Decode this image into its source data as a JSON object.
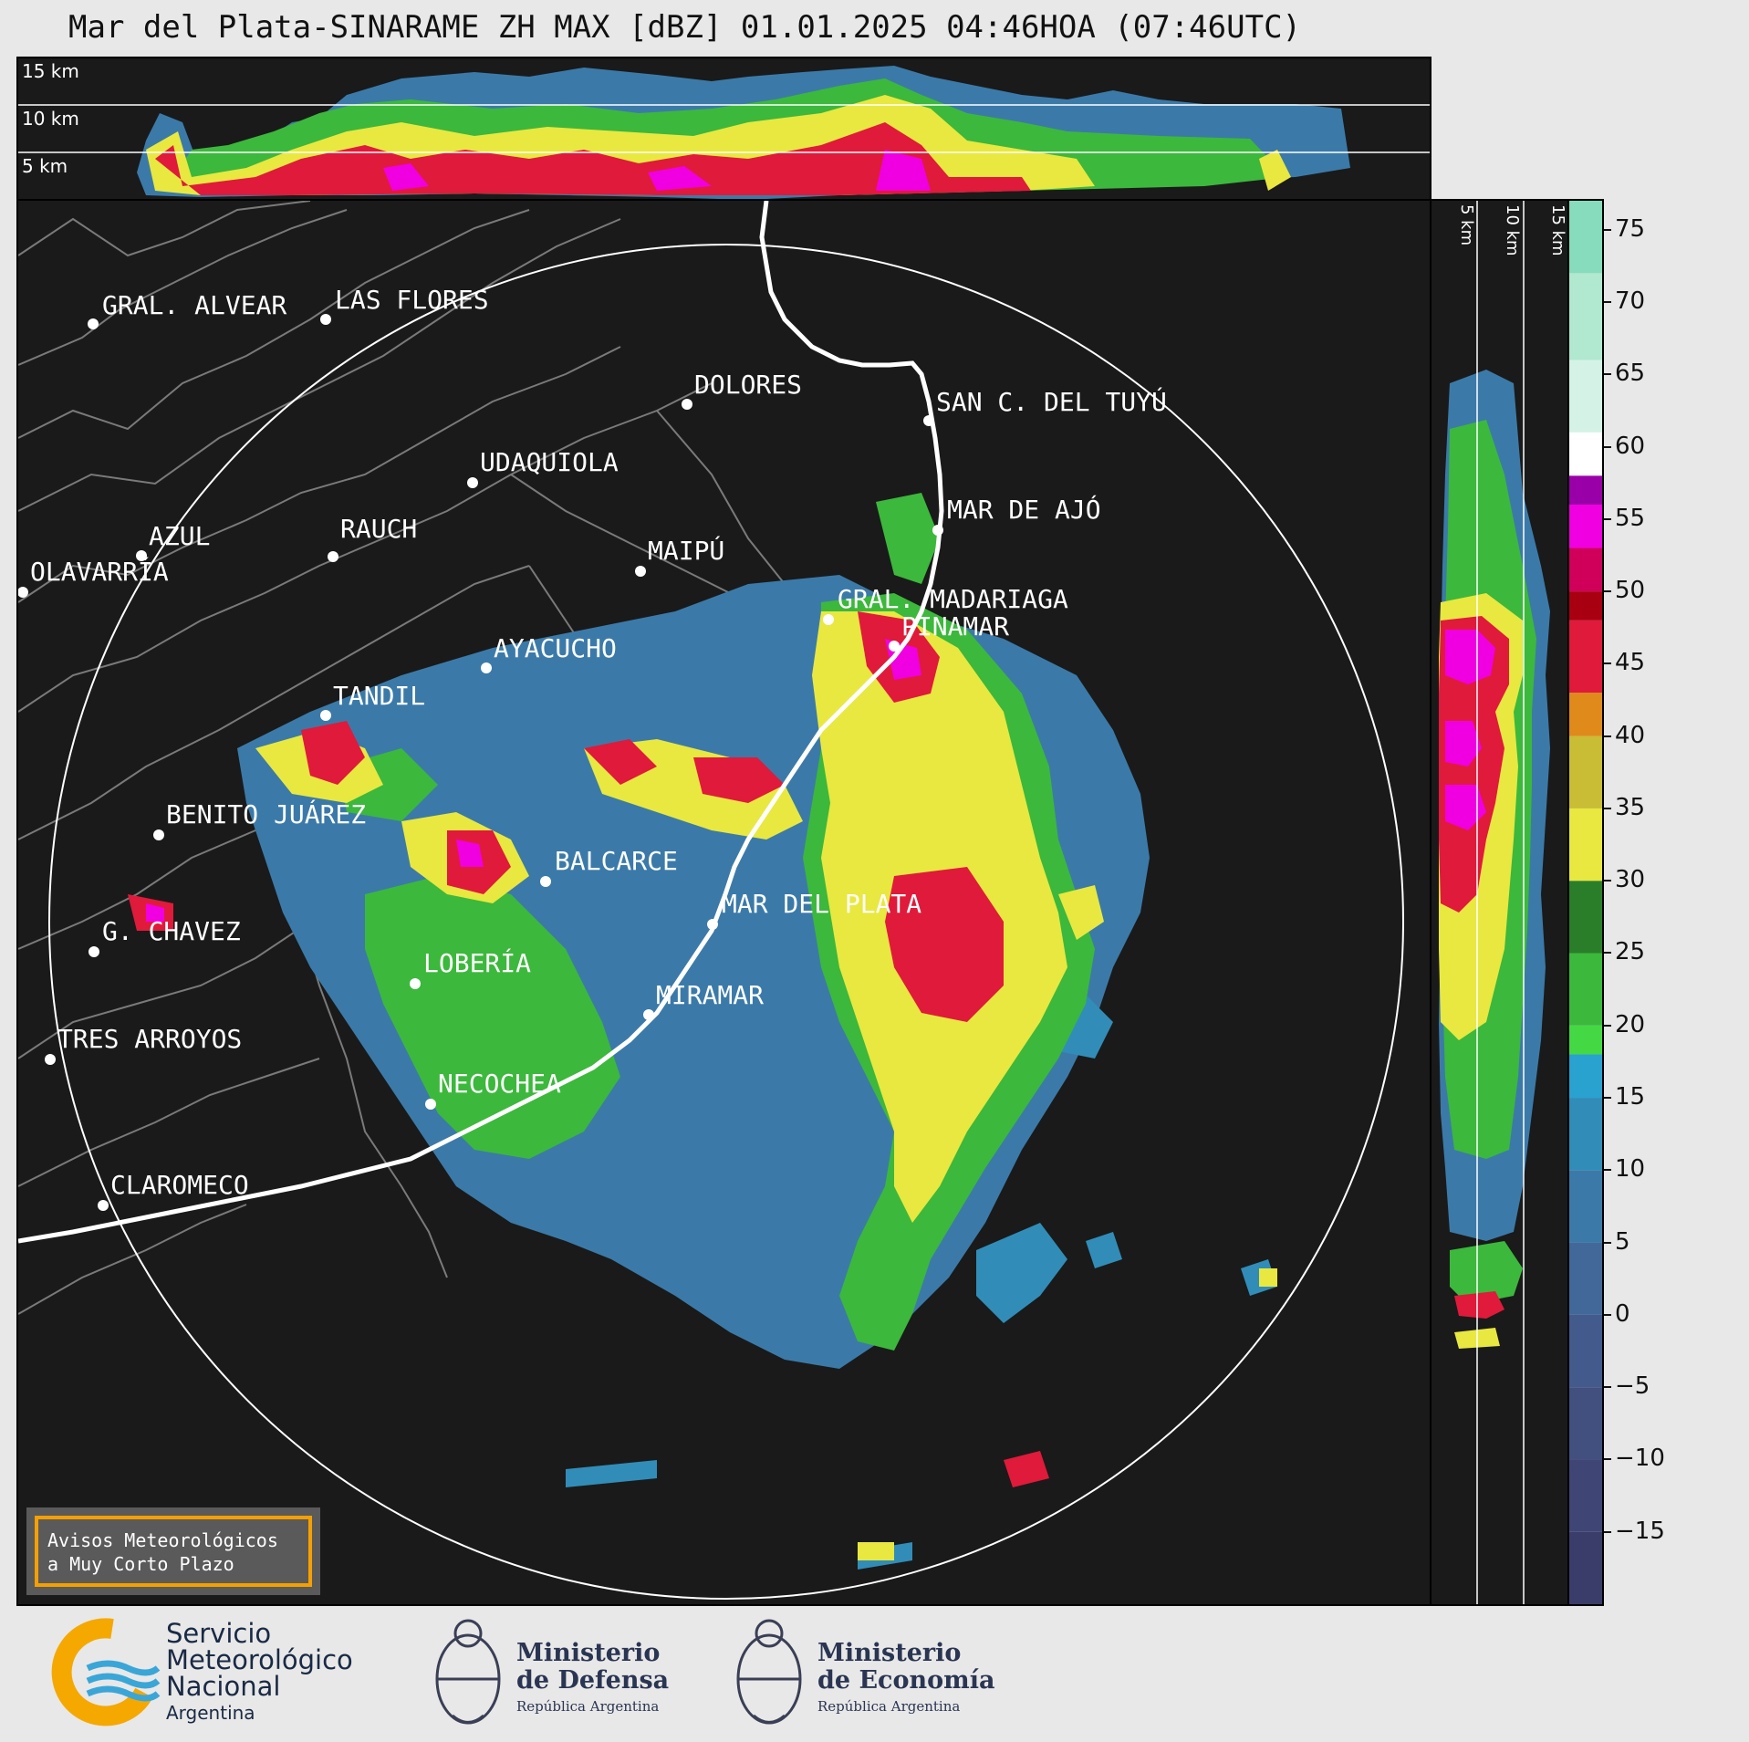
{
  "header": {
    "title": "Mar del Plata-SINARAME ZH MAX [dBZ] 01.01.2025 04:46HOA (07:46UTC)"
  },
  "top_panel": {
    "height_labels": [
      "15 km",
      "10 km",
      "5 km"
    ]
  },
  "side_panel": {
    "height_labels": [
      "5 km",
      "10 km",
      "15 km"
    ]
  },
  "map": {
    "cities": [
      {
        "name": "GRAL. ALVEAR"
      },
      {
        "name": "LAS FLORES"
      },
      {
        "name": "DOLORES"
      },
      {
        "name": "SAN C. DEL TUYÚ"
      },
      {
        "name": "UDAQUIOLA"
      },
      {
        "name": "MAR DE AJÓ"
      },
      {
        "name": "AZUL"
      },
      {
        "name": "RAUCH"
      },
      {
        "name": "MAIPÚ"
      },
      {
        "name": "OLAVARRÍA"
      },
      {
        "name": "GRAL. MADARIAGA"
      },
      {
        "name": "PINAMAR"
      },
      {
        "name": "AYACUCHO"
      },
      {
        "name": "TANDIL"
      },
      {
        "name": "BENITO JUÁREZ"
      },
      {
        "name": "BALCARCE"
      },
      {
        "name": "MAR DEL PLATA"
      },
      {
        "name": "G. CHAVEZ"
      },
      {
        "name": "LOBERÍA"
      },
      {
        "name": "MIRAMAR"
      },
      {
        "name": "TRES ARROYOS"
      },
      {
        "name": "NECOCHEA"
      },
      {
        "name": "CLAROMECO"
      }
    ]
  },
  "colorbar": {
    "unit": "dBZ",
    "ticks": [
      "75",
      "70",
      "65",
      "60",
      "55",
      "50",
      "45",
      "40",
      "35",
      "30",
      "25",
      "20",
      "15",
      "10",
      "5",
      "0",
      "−5",
      "−10",
      "−15"
    ],
    "range": [
      -20,
      77
    ],
    "colors": [
      {
        "from": -20,
        "to": -15,
        "color": "#3a3d6a"
      },
      {
        "from": -15,
        "to": -10,
        "color": "#3f4575"
      },
      {
        "from": -10,
        "to": -5,
        "color": "#425080"
      },
      {
        "from": -5,
        "to": 0,
        "color": "#435a8c"
      },
      {
        "from": 0,
        "to": 5,
        "color": "#416898"
      },
      {
        "from": 5,
        "to": 10,
        "color": "#3b7aa8"
      },
      {
        "from": 10,
        "to": 15,
        "color": "#318db8"
      },
      {
        "from": 15,
        "to": 18,
        "color": "#29a2cf"
      },
      {
        "from": 18,
        "to": 20,
        "color": "#45d845"
      },
      {
        "from": 20,
        "to": 25,
        "color": "#3cb83c"
      },
      {
        "from": 25,
        "to": 30,
        "color": "#2a7e2a"
      },
      {
        "from": 30,
        "to": 35,
        "color": "#e8e840"
      },
      {
        "from": 35,
        "to": 40,
        "color": "#c9bd35"
      },
      {
        "from": 40,
        "to": 43,
        "color": "#e08a1c"
      },
      {
        "from": 43,
        "to": 48,
        "color": "#e01a3a"
      },
      {
        "from": 48,
        "to": 50,
        "color": "#a80010"
      },
      {
        "from": 50,
        "to": 53,
        "color": "#d0005a"
      },
      {
        "from": 53,
        "to": 56,
        "color": "#f000e0"
      },
      {
        "from": 56,
        "to": 58,
        "color": "#9a00a8"
      },
      {
        "from": 58,
        "to": 61,
        "color": "#ffffff"
      },
      {
        "from": 61,
        "to": 66,
        "color": "#d4f3e6"
      },
      {
        "from": 66,
        "to": 72,
        "color": "#b0e8d0"
      },
      {
        "from": 72,
        "to": 77,
        "color": "#86dcbc"
      }
    ]
  },
  "alert_box": {
    "line1": "Avisos Meteorológicos",
    "line2": "a Muy Corto Plazo"
  },
  "footer": {
    "smn": {
      "line1": "Servicio",
      "line2": "Meteorológico",
      "line3": "Nacional",
      "country": "Argentina"
    },
    "defensa": {
      "line1": "Ministerio",
      "line2": "de Defensa",
      "sub": "República Argentina"
    },
    "economia": {
      "line1": "Ministerio",
      "line2": "de Economía",
      "sub": "República Argentina"
    }
  }
}
